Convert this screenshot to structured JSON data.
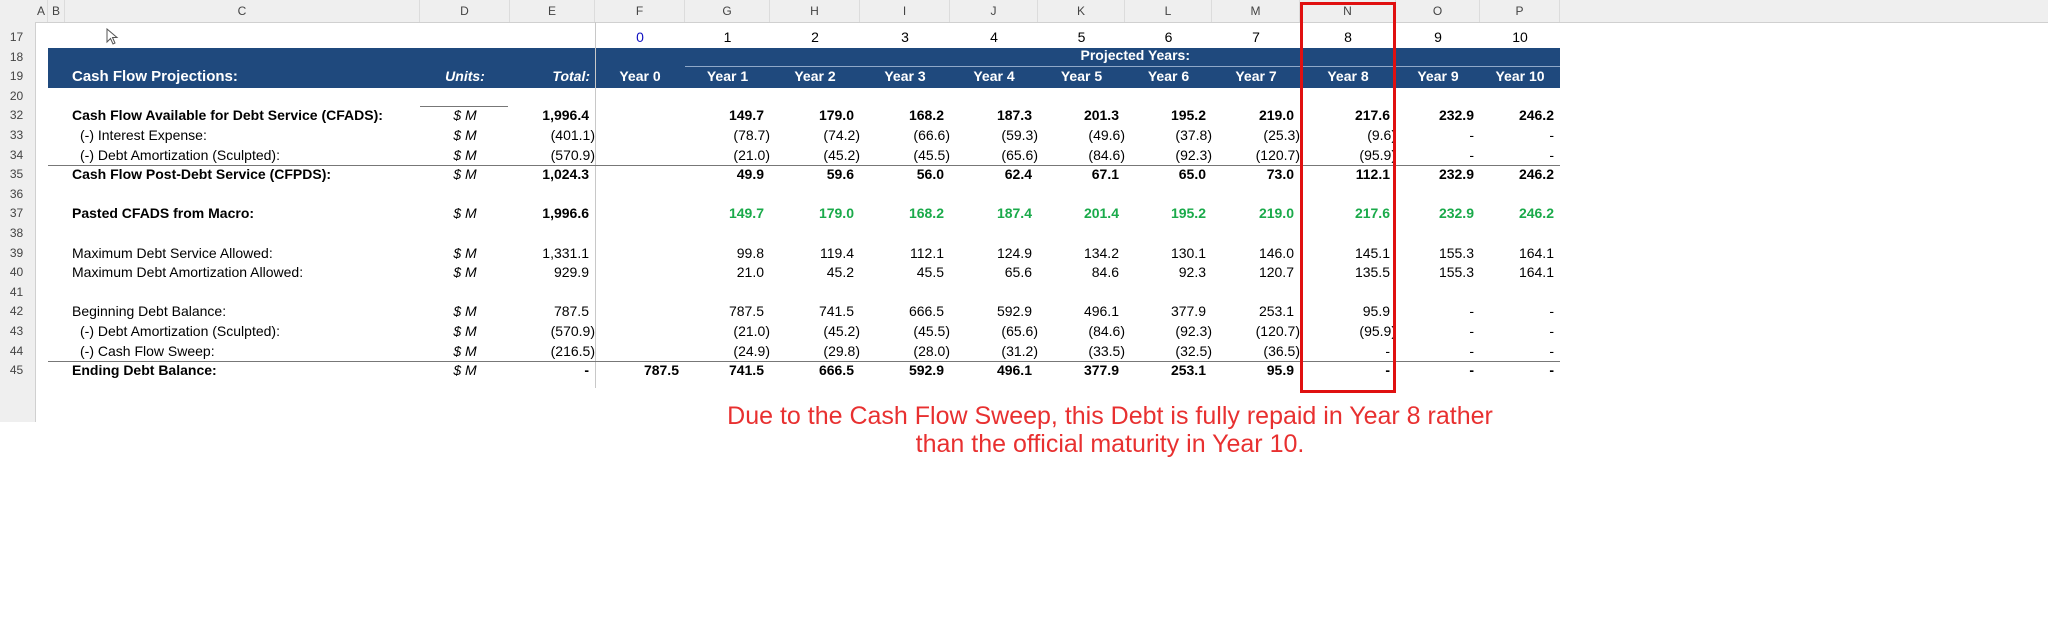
{
  "columns": [
    "A",
    "B",
    "C",
    "D",
    "E",
    "F",
    "G",
    "H",
    "I",
    "J",
    "K",
    "L",
    "M",
    "N",
    "O",
    "P"
  ],
  "row17": {
    "row": "17",
    "flags": [
      "0",
      "1",
      "2",
      "3",
      "4",
      "5",
      "6",
      "7",
      "8",
      "9",
      "10"
    ]
  },
  "header": {
    "title": "Cash Flow Projections:",
    "units": "Units:",
    "total": "Total:",
    "projected": "Projected Years:",
    "years": [
      "Year 0",
      "Year 1",
      "Year 2",
      "Year 3",
      "Year 4",
      "Year 5",
      "Year 6",
      "Year 7",
      "Year 8",
      "Year 9",
      "Year 10"
    ]
  },
  "row_numbers_header": [
    "18",
    "19",
    "20"
  ],
  "rows": [
    {
      "row": "32",
      "label": "Cash Flow Available for Debt Service (CFADS):",
      "units": "$ M",
      "total": "1,996.4",
      "values": [
        "",
        "149.7",
        "179.0",
        "168.2",
        "187.3",
        "201.3",
        "195.2",
        "219.0",
        "217.6",
        "232.9",
        "246.2"
      ],
      "bold": true
    },
    {
      "row": "33",
      "label": "(-) Interest Expense:",
      "units": "$ M",
      "total": "(401.1)",
      "values": [
        "",
        "(78.7)",
        "(74.2)",
        "(66.6)",
        "(59.3)",
        "(49.6)",
        "(37.8)",
        "(25.3)",
        "(9.6)",
        "-",
        "-"
      ],
      "indent": true
    },
    {
      "row": "34",
      "label": "(-) Debt Amortization (Sculpted):",
      "units": "$ M",
      "total": "(570.9)",
      "values": [
        "",
        "(21.0)",
        "(45.2)",
        "(45.5)",
        "(65.6)",
        "(84.6)",
        "(92.3)",
        "(120.7)",
        "(95.9)",
        "-",
        "-"
      ],
      "indent": true
    },
    {
      "row": "35",
      "label": "Cash Flow Post-Debt Service (CFPDS):",
      "units": "$ M",
      "total": "1,024.3",
      "values": [
        "",
        "49.9",
        "59.6",
        "56.0",
        "62.4",
        "67.1",
        "65.0",
        "73.0",
        "112.1",
        "232.9",
        "246.2"
      ],
      "bold": true,
      "topline": true
    },
    {
      "row": "36"
    },
    {
      "row": "37",
      "label": "Pasted CFADS from Macro:",
      "units": "$ M",
      "total": "1,996.6",
      "values": [
        "",
        "149.7",
        "179.0",
        "168.2",
        "187.4",
        "201.4",
        "195.2",
        "219.0",
        "217.6",
        "232.9",
        "246.2"
      ],
      "bold": true,
      "green": true
    },
    {
      "row": "38"
    },
    {
      "row": "39",
      "label": "Maximum Debt Service Allowed:",
      "units": "$ M",
      "total": "1,331.1",
      "values": [
        "",
        "99.8",
        "119.4",
        "112.1",
        "124.9",
        "134.2",
        "130.1",
        "146.0",
        "145.1",
        "155.3",
        "164.1"
      ]
    },
    {
      "row": "40",
      "label": "Maximum Debt Amortization Allowed:",
      "units": "$ M",
      "total": "929.9",
      "values": [
        "",
        "21.0",
        "45.2",
        "45.5",
        "65.6",
        "84.6",
        "92.3",
        "120.7",
        "135.5",
        "155.3",
        "164.1"
      ]
    },
    {
      "row": "41"
    },
    {
      "row": "42",
      "label": "Beginning Debt Balance:",
      "units": "$ M",
      "total": "787.5",
      "values": [
        "",
        "787.5",
        "741.5",
        "666.5",
        "592.9",
        "496.1",
        "377.9",
        "253.1",
        "95.9",
        "-",
        "-"
      ]
    },
    {
      "row": "43",
      "label": "(-) Debt Amortization (Sculpted):",
      "units": "$ M",
      "total": "(570.9)",
      "values": [
        "",
        "(21.0)",
        "(45.2)",
        "(45.5)",
        "(65.6)",
        "(84.6)",
        "(92.3)",
        "(120.7)",
        "(95.9)",
        "-",
        "-"
      ],
      "indent": true
    },
    {
      "row": "44",
      "label": "(-) Cash Flow Sweep:",
      "units": "$ M",
      "total": "(216.5)",
      "values": [
        "",
        "(24.9)",
        "(29.8)",
        "(28.0)",
        "(31.2)",
        "(33.5)",
        "(32.5)",
        "(36.5)",
        "-",
        "-",
        "-"
      ],
      "indent": true
    },
    {
      "row": "45",
      "label": "Ending Debt Balance:",
      "units": "$ M",
      "total": "-",
      "values": [
        "787.5",
        "741.5",
        "666.5",
        "592.9",
        "496.1",
        "377.9",
        "253.1",
        "95.9",
        "-",
        "-",
        "-"
      ],
      "bold": true,
      "topline": true
    }
  ],
  "annotation": {
    "line1": "Due to the Cash Flow Sweep, this Debt is fully repaid in Year 8 rather",
    "line2": "than the official maturity in Year 10."
  },
  "colors": {
    "header_bg": "#1f497d",
    "green": "#1aaa4a",
    "highlight": "#e01010",
    "flag_zero": "#1010c0"
  }
}
